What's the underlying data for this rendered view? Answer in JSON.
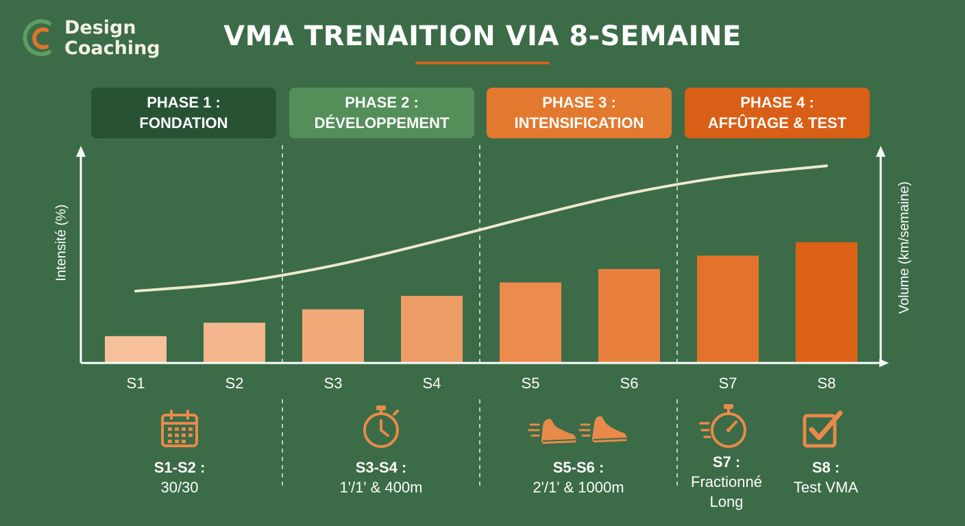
{
  "logo": {
    "line1": "Design",
    "line2": "Coaching"
  },
  "title": "VMA TRENAITION VIA 8-SEMAINE",
  "phases": [
    {
      "line1": "PHASE 1 :",
      "line2": "FONDATION",
      "color": "#275234"
    },
    {
      "line1": "PHASE 2 :",
      "line2": "DÉVELOPPEMENT",
      "color": "#548f59"
    },
    {
      "line1": "PHASE 3 :",
      "line2": "INTENSIFICATION",
      "color": "#e3792f"
    },
    {
      "line1": "PHASE 4 :",
      "line2": "AFFÛTAGE & TEST",
      "color": "#d85f15"
    }
  ],
  "colors": {
    "background": "#3c6b47",
    "curve": "#ece9cf",
    "accent": "#d2611c"
  },
  "chart_data": {
    "type": "bar",
    "categories": [
      "S1",
      "S2",
      "S3",
      "S4",
      "S5",
      "S6",
      "S7",
      "S8"
    ],
    "series": [
      {
        "name": "",
        "axis": "right",
        "values": [
          1,
          2,
          3,
          4,
          5,
          6,
          7,
          8
        ],
        "colors": [
          "#f6c09a",
          "#f4b68d",
          "#f2a978",
          "#ef9d66",
          "#ec8b4c",
          "#e9803e",
          "#e4722c",
          "#dc6217"
        ]
      },
      {
        "name": "",
        "type": "line",
        "axis": "left",
        "values": [
          1.0,
          1.4,
          2.2,
          3.3,
          4.5,
          5.6,
          6.4,
          6.9
        ]
      }
    ],
    "ylabel": "Intensité (%)",
    "y2label": "Volume (km/semaine)",
    "grid": false,
    "legend": "none",
    "note": "Values are relative; the chart prints no numeric scale."
  },
  "sessions": [
    {
      "icon": "calendar-icon",
      "label": "S1-S2 :",
      "value": "30/30"
    },
    {
      "icon": "stopwatch-icon",
      "label": "S3-S4 :",
      "value": "1'/1' & 400m"
    },
    {
      "icon": "running-shoes-icon",
      "label": "S5-S6 :",
      "value": "2'/1' & 1000m"
    },
    {
      "icon": "fast-stopwatch-icon",
      "label": "S7 :",
      "value": "Fractionné",
      "value2": "Long"
    },
    {
      "icon": "checkbox-icon",
      "label": "S8 :",
      "value": "Test VMA"
    }
  ]
}
